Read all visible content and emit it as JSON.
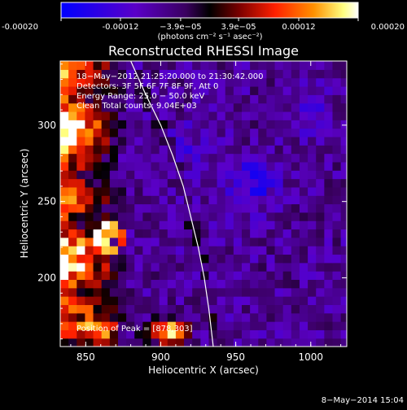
{
  "chart_data": {
    "type": "heatmap",
    "title": "Reconstructed RHESSI Image",
    "xlabel": "Heliocentric X (arcsec)",
    "ylabel": "Heliocentric Y (arcsec)",
    "xlim": [
      833,
      1024
    ],
    "ylim": [
      155,
      342
    ],
    "x_ticks": [
      850,
      900,
      950,
      1000
    ],
    "y_ticks": [
      200,
      250,
      300
    ],
    "colorbar": {
      "range": [
        -0.0002,
        0.0002
      ],
      "tick_values": [
        -0.0002,
        -0.00012,
        -3.9e-05,
        3.9e-05,
        0.00012,
        0.0002
      ],
      "tick_labels": [
        "-0.00020",
        "-0.00012",
        "−3.9e−05",
        "3.9e−05",
        "0.00012",
        "0.00020"
      ],
      "units": "(photons cm⁻² s⁻¹ asec⁻²)",
      "palette": [
        "#0000ff",
        "#5a00c8",
        "#3a0060",
        "#000000",
        "#7a0000",
        "#ff2000",
        "#ff9000",
        "#ffff80",
        "#ffffff"
      ]
    },
    "annotations": [
      "18−May−2012 21:25:20.000 to 21:30:42.000",
      "Detectors: 3F 5F 6F 7F 8F 9F, Att 0",
      "Energy Range: 25.0 − 50.0 keV",
      "Clean     Total counts: 9.04E+03"
    ],
    "peak_label": "Position of Peak = [878,303]",
    "peak_position": [
      878,
      303
    ],
    "limb_curve": [
      [
        880,
        342
      ],
      [
        890,
        320
      ],
      [
        900,
        300
      ],
      [
        908,
        280
      ],
      [
        915,
        260
      ],
      [
        920,
        240
      ],
      [
        925,
        220
      ],
      [
        929,
        200
      ],
      [
        932,
        180
      ],
      [
        935,
        155
      ]
    ],
    "bright_region": "east limb (left edge)"
  },
  "footer": {
    "date": "8−May−2014 15:04"
  }
}
